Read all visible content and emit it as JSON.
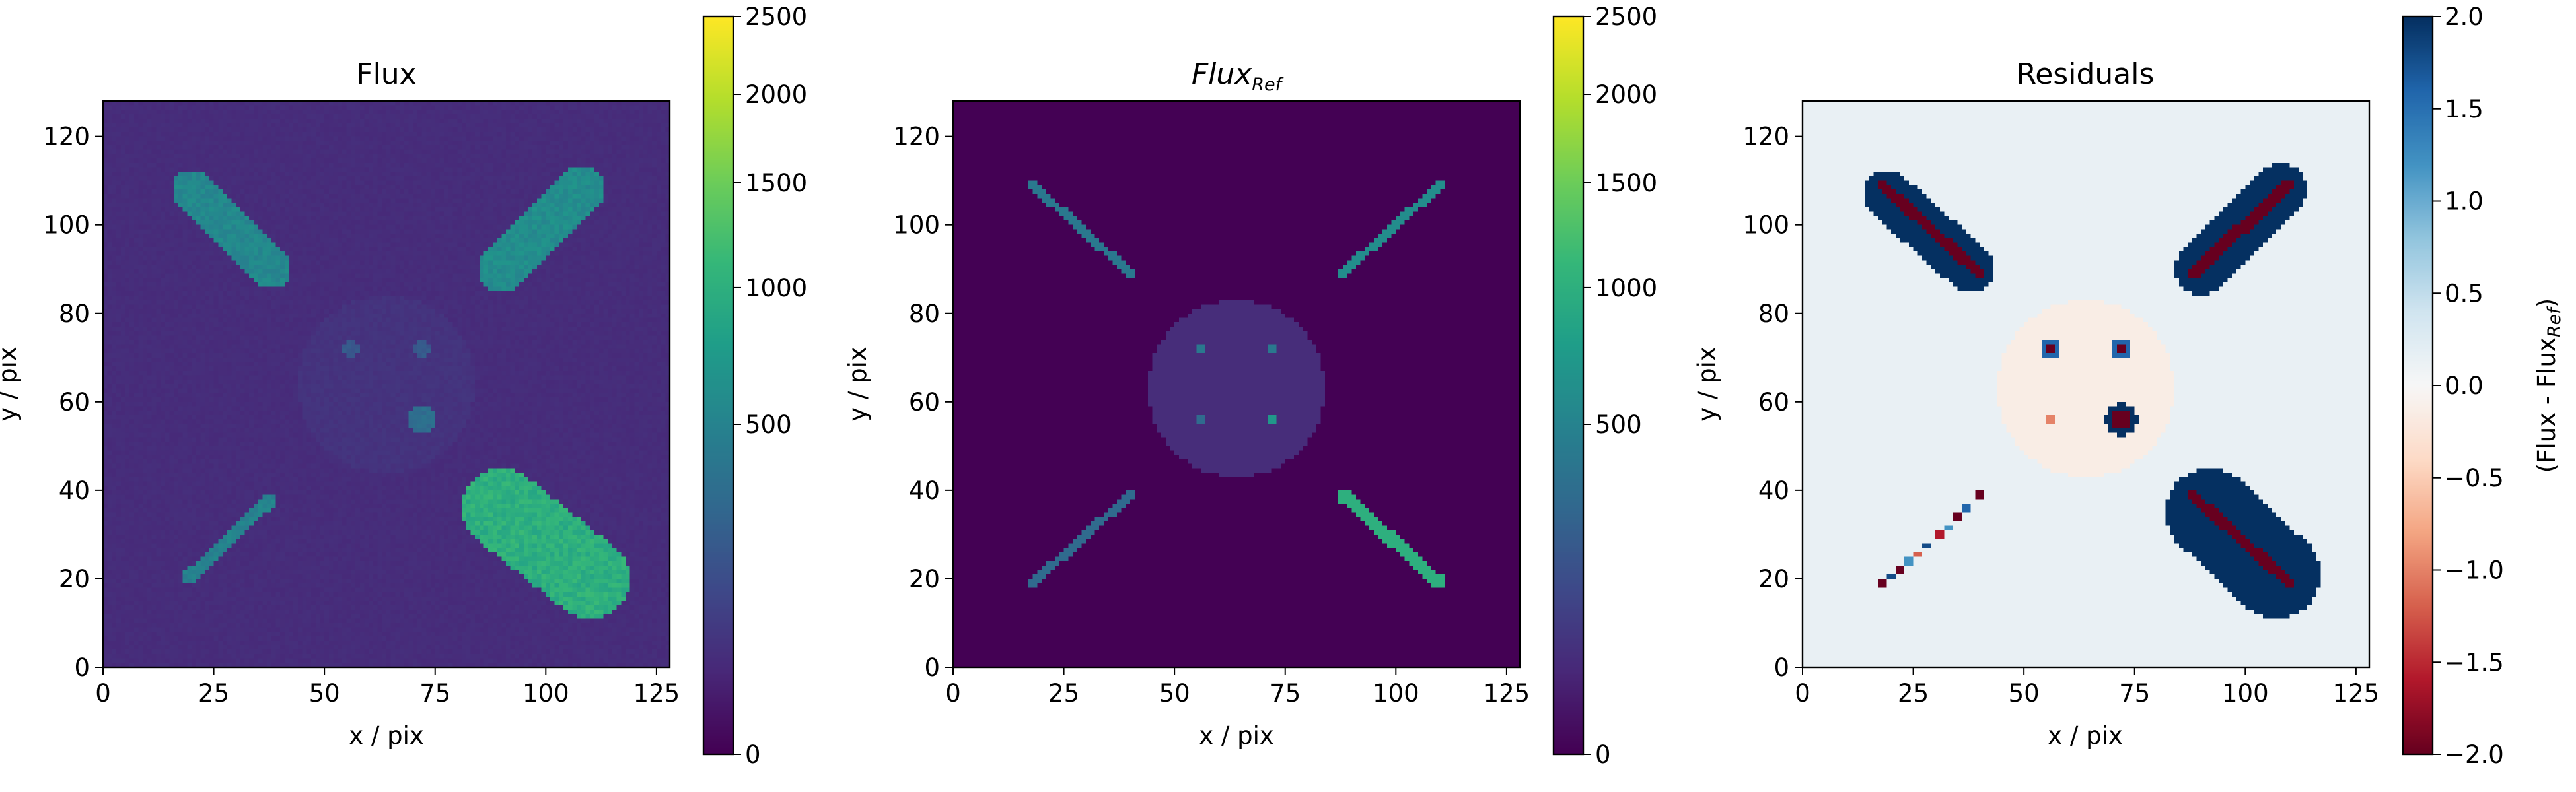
{
  "chart_data": [
    {
      "type": "heatmap",
      "title": "Flux",
      "title_italic": false,
      "xlabel": "x / pix",
      "ylabel": "y / pix",
      "xlim": [
        0,
        128
      ],
      "ylim": [
        0,
        128
      ],
      "xticks": [
        0,
        25,
        50,
        75,
        100,
        125
      ],
      "yticks": [
        0,
        20,
        40,
        60,
        80,
        100,
        120
      ],
      "colormap": "viridis",
      "colorbar": {
        "ticks": [
          0,
          500,
          1000,
          1500,
          2000,
          2500
        ],
        "range": [
          0,
          2500
        ],
        "scale": "sqrt",
        "label": ""
      },
      "background_value": 40,
      "features": [
        {
          "shape": "capsule",
          "x0": 20,
          "y0": 108,
          "x1": 38,
          "y1": 90,
          "width": 4.5,
          "value": 550
        },
        {
          "shape": "capsule",
          "x0": 90,
          "y0": 90,
          "x1": 108,
          "y1": 108,
          "width": 5.5,
          "value": 600
        },
        {
          "shape": "capsule",
          "x0": 19,
          "y0": 20,
          "x1": 38,
          "y1": 38,
          "width": 1.5,
          "value": 500
        },
        {
          "shape": "capsule",
          "x0": 90,
          "y0": 36,
          "x1": 110,
          "y1": 20,
          "width": 9,
          "value": 1000
        },
        {
          "shape": "disk",
          "x": 64,
          "y": 64,
          "r": 20,
          "value": 55
        },
        {
          "shape": "dot",
          "x": 56,
          "y": 72,
          "r": 2,
          "value": 200
        },
        {
          "shape": "dot",
          "x": 72,
          "y": 72,
          "r": 2,
          "value": 200
        },
        {
          "shape": "dot",
          "x": 72,
          "y": 56,
          "r": 3,
          "value": 320
        }
      ]
    },
    {
      "type": "heatmap",
      "title": "Flux",
      "title_subscript": "Ref",
      "title_italic": true,
      "xlabel": "x / pix",
      "ylabel": "y / pix",
      "xlim": [
        0,
        128
      ],
      "ylim": [
        0,
        128
      ],
      "xticks": [
        0,
        25,
        50,
        75,
        100,
        125
      ],
      "yticks": [
        0,
        20,
        40,
        60,
        80,
        100,
        120
      ],
      "colormap": "viridis",
      "colorbar": {
        "ticks": [
          0,
          500,
          1000,
          1500,
          2000,
          2500
        ],
        "range": [
          0,
          2500
        ],
        "scale": "sqrt",
        "label": ""
      },
      "background_value": 0,
      "features": [
        {
          "shape": "line",
          "x0": 18,
          "y0": 109,
          "x1": 40,
          "y1": 89,
          "width": 1,
          "value": 400
        },
        {
          "shape": "line",
          "x0": 88,
          "y0": 89,
          "x1": 110,
          "y1": 109,
          "width": 1,
          "value": 600
        },
        {
          "shape": "line",
          "x0": 18,
          "y0": 19,
          "x1": 40,
          "y1": 39,
          "width": 1,
          "value": 300
        },
        {
          "shape": "line",
          "x0": 88,
          "y0": 39,
          "x1": 110,
          "y1": 19,
          "width": 1.5,
          "value": 1000
        },
        {
          "shape": "disk",
          "x": 64,
          "y": 63,
          "r": 20,
          "value": 40
        },
        {
          "shape": "point",
          "x": 56,
          "y": 72,
          "value": 400
        },
        {
          "shape": "point",
          "x": 72,
          "y": 72,
          "value": 400
        },
        {
          "shape": "point",
          "x": 56,
          "y": 56,
          "value": 300
        },
        {
          "shape": "point",
          "x": 72,
          "y": 56,
          "value": 700
        }
      ]
    },
    {
      "type": "heatmap",
      "title": "Residuals",
      "title_italic": false,
      "xlabel": "x / pix",
      "ylabel": "y / pix",
      "xlim": [
        0,
        128
      ],
      "ylim": [
        0,
        128
      ],
      "xticks": [
        0,
        25,
        50,
        75,
        100,
        125
      ],
      "yticks": [
        0,
        20,
        40,
        60,
        80,
        100,
        120
      ],
      "colormap": "RdBu",
      "colorbar": {
        "ticks": [
          -2.0,
          -1.5,
          -1.0,
          -0.5,
          0.0,
          0.5,
          1.0,
          1.5,
          2.0
        ],
        "tick_labels": [
          "−2.0",
          "−1.5",
          "−1.0",
          "−0.5",
          "0.0",
          "0.5",
          "1.0",
          "1.5",
          "2.0"
        ],
        "range": [
          -2,
          2
        ],
        "scale": "linear",
        "label": "(Flux - Flux",
        "label_subscript": "Ref",
        "label_suffix": ")"
      },
      "background_value": 0.15,
      "features": [
        {
          "shape": "capsule",
          "x0": 19,
          "y0": 107,
          "x1": 38,
          "y1": 90,
          "width": 5.5,
          "value": 2.0
        },
        {
          "shape": "line",
          "x0": 18,
          "y0": 109,
          "x1": 40,
          "y1": 89,
          "width": 1.2,
          "value": -2.0
        },
        {
          "shape": "capsule",
          "x0": 90,
          "y0": 90,
          "x1": 108,
          "y1": 108,
          "width": 6,
          "value": 2.0
        },
        {
          "shape": "line",
          "x0": 88,
          "y0": 89,
          "x1": 110,
          "y1": 109,
          "width": 1.4,
          "value": -2.0
        },
        {
          "shape": "capsule",
          "x0": 92,
          "y0": 35,
          "x1": 107,
          "y1": 21,
          "width": 10,
          "value": 2.0
        },
        {
          "shape": "line",
          "x0": 88,
          "y0": 39,
          "x1": 110,
          "y1": 19,
          "width": 1.2,
          "value": -2.0
        },
        {
          "shape": "disk",
          "x": 64,
          "y": 63,
          "r": 20,
          "value": -0.15
        },
        {
          "shape": "dot",
          "x": 56,
          "y": 72,
          "r": 2.2,
          "value": 1.6
        },
        {
          "shape": "point",
          "x": 56,
          "y": 72,
          "value": -2.0
        },
        {
          "shape": "dot",
          "x": 72,
          "y": 72,
          "r": 2.2,
          "value": 1.6
        },
        {
          "shape": "point",
          "x": 72,
          "y": 72,
          "value": -2.0
        },
        {
          "shape": "dot",
          "x": 72,
          "y": 56,
          "r": 3.8,
          "value": 2.0
        },
        {
          "shape": "dot",
          "x": 72,
          "y": 56,
          "r": 2.2,
          "value": -2.0
        },
        {
          "shape": "point",
          "x": 56,
          "y": 56,
          "value": -1.0
        },
        {
          "shape": "blobs",
          "points": [
            [
              18,
              19,
              -2.0
            ],
            [
              20,
              20.5,
              1.8
            ],
            [
              22,
              22,
              -2.0
            ],
            [
              24,
              24,
              1.2
            ],
            [
              26,
              25.5,
              -1.2
            ],
            [
              28,
              27.5,
              1.8
            ],
            [
              31,
              30,
              -1.6
            ],
            [
              33,
              31.5,
              1.2
            ],
            [
              35,
              34,
              -2.0
            ],
            [
              37,
              36,
              1.6
            ],
            [
              40,
              39,
              -2.0
            ]
          ],
          "r": 0.95
        }
      ]
    }
  ]
}
